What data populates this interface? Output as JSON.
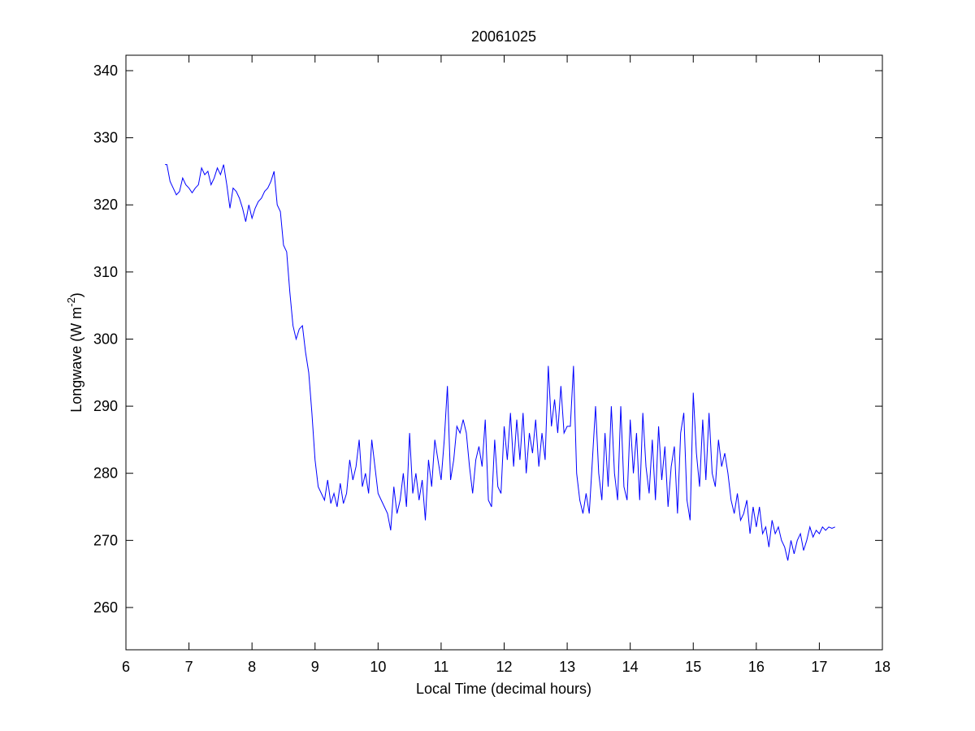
{
  "chart_data": {
    "type": "line",
    "title": "20061025",
    "x_label": "Local Time (decimal hours)",
    "y_label": {
      "text": "Longwave (W m",
      "superscript": "-2",
      "suffix": ")"
    },
    "xlim": [
      6,
      18
    ],
    "xticks": [
      6,
      7,
      8,
      9,
      10,
      11,
      12,
      13,
      14,
      15,
      16,
      17,
      18
    ],
    "ylim": [
      253.7,
      342.3
    ],
    "yticks": [
      260,
      270,
      280,
      290,
      300,
      310,
      320,
      330,
      340
    ],
    "color": "#0000ff",
    "x": [
      6.62,
      6.65,
      6.7,
      6.75,
      6.8,
      6.85,
      6.9,
      6.95,
      7.0,
      7.05,
      7.1,
      7.15,
      7.2,
      7.25,
      7.3,
      7.35,
      7.4,
      7.45,
      7.5,
      7.55,
      7.6,
      7.65,
      7.7,
      7.75,
      7.8,
      7.85,
      7.9,
      7.95,
      8.0,
      8.05,
      8.1,
      8.15,
      8.2,
      8.25,
      8.3,
      8.35,
      8.4,
      8.45,
      8.5,
      8.55,
      8.6,
      8.65,
      8.7,
      8.75,
      8.8,
      8.85,
      8.9,
      8.95,
      9.0,
      9.05,
      9.1,
      9.15,
      9.2,
      9.25,
      9.3,
      9.35,
      9.4,
      9.45,
      9.5,
      9.55,
      9.6,
      9.65,
      9.7,
      9.75,
      9.8,
      9.85,
      9.9,
      9.95,
      10.0,
      10.05,
      10.1,
      10.15,
      10.2,
      10.25,
      10.3,
      10.35,
      10.4,
      10.45,
      10.5,
      10.55,
      10.6,
      10.65,
      10.7,
      10.75,
      10.8,
      10.85,
      10.9,
      10.95,
      11.0,
      11.05,
      11.1,
      11.15,
      11.2,
      11.25,
      11.3,
      11.35,
      11.4,
      11.45,
      11.5,
      11.55,
      11.6,
      11.65,
      11.7,
      11.75,
      11.8,
      11.85,
      11.9,
      11.95,
      12.0,
      12.05,
      12.1,
      12.15,
      12.2,
      12.25,
      12.3,
      12.35,
      12.4,
      12.45,
      12.5,
      12.55,
      12.6,
      12.65,
      12.7,
      12.75,
      12.8,
      12.85,
      12.9,
      12.95,
      13.0,
      13.05,
      13.1,
      13.15,
      13.2,
      13.25,
      13.3,
      13.35,
      13.4,
      13.45,
      13.5,
      13.55,
      13.6,
      13.65,
      13.7,
      13.75,
      13.8,
      13.85,
      13.9,
      13.95,
      14.0,
      14.05,
      14.1,
      14.15,
      14.2,
      14.25,
      14.3,
      14.35,
      14.4,
      14.45,
      14.5,
      14.55,
      14.6,
      14.65,
      14.7,
      14.75,
      14.8,
      14.85,
      14.9,
      14.95,
      15.0,
      15.05,
      15.1,
      15.15,
      15.2,
      15.25,
      15.3,
      15.35,
      15.4,
      15.45,
      15.5,
      15.55,
      15.6,
      15.65,
      15.7,
      15.75,
      15.8,
      15.85,
      15.9,
      15.95,
      16.0,
      16.05,
      16.1,
      16.15,
      16.2,
      16.25,
      16.3,
      16.35,
      16.4,
      16.45,
      16.5,
      16.55,
      16.6,
      16.65,
      16.7,
      16.75,
      16.8,
      16.85,
      16.9,
      16.95,
      17.0,
      17.05,
      17.1,
      17.15,
      17.2,
      17.25
    ],
    "values": [
      326,
      326,
      323.5,
      322.5,
      321.5,
      322,
      324,
      323,
      322.5,
      321.8,
      322.5,
      323,
      325.5,
      324.5,
      325,
      323,
      324,
      325.5,
      324.5,
      326,
      323,
      319.5,
      322.5,
      322,
      321,
      319.5,
      317.5,
      320,
      318,
      319.5,
      320.5,
      321,
      322,
      322.5,
      323.5,
      325,
      320,
      319,
      314,
      313,
      307,
      302,
      300,
      301.5,
      302,
      298,
      295,
      289,
      282,
      278,
      277,
      276,
      279,
      275.5,
      277,
      275,
      278.5,
      275.5,
      277,
      282,
      279,
      281,
      285,
      278,
      280,
      277,
      285,
      281,
      277,
      276,
      275,
      274,
      271.5,
      278,
      274,
      276,
      280,
      275,
      286,
      277,
      280,
      276,
      279,
      273,
      282,
      278,
      285,
      282,
      279,
      285,
      293,
      279,
      282,
      287,
      286,
      288,
      286,
      281,
      277,
      282,
      284,
      281,
      288,
      276,
      275,
      285,
      278,
      277,
      287,
      282,
      289,
      281,
      288,
      282,
      289,
      280,
      286,
      283,
      288,
      281,
      286,
      282,
      296,
      287,
      291,
      286,
      293,
      286,
      287,
      287,
      296,
      280,
      276,
      274,
      277,
      274,
      282,
      290,
      280,
      276,
      286,
      278,
      290,
      280,
      276,
      290,
      278,
      276,
      288,
      280,
      286,
      276,
      289,
      281,
      277,
      285,
      276,
      287,
      279,
      284,
      275,
      281,
      284,
      274,
      286,
      289,
      276,
      273,
      292,
      283,
      278,
      288,
      279,
      289,
      280,
      278,
      285,
      281,
      283,
      280,
      276,
      274,
      277,
      273,
      274,
      276,
      271,
      275,
      272,
      275,
      271,
      272,
      269,
      273,
      271,
      272,
      270,
      269,
      267,
      270,
      268,
      270,
      271,
      268.5,
      270,
      272,
      270.5,
      271.5,
      271,
      272,
      271.5,
      272,
      271.8,
      272
    ]
  }
}
